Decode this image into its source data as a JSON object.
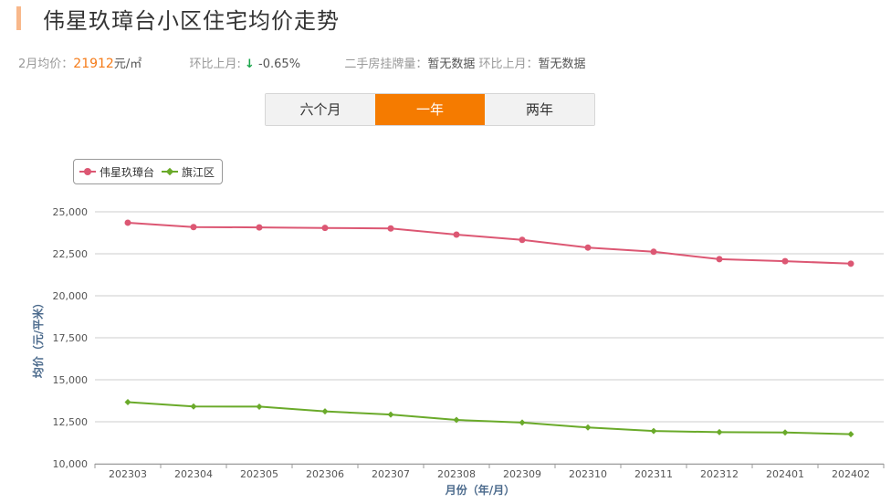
{
  "header": {
    "title": "伟星玖璋台小区住宅均价走势"
  },
  "stats": {
    "avg_label": "2月均价：",
    "avg_value": "21912",
    "avg_unit": "元/㎡",
    "mom_label": "环比上月: ",
    "mom_arrow": "↓",
    "mom_value": " -0.65%",
    "listing_label": "二手房挂牌量：",
    "listing_value": "暂无数据",
    "listing_mom_label": "环比上月：",
    "listing_mom_value": "暂无数据"
  },
  "tabs": [
    {
      "label": "六个月",
      "active": false
    },
    {
      "label": "一年",
      "active": true
    },
    {
      "label": "两年",
      "active": false
    }
  ],
  "colors": {
    "series1": "#dc5773",
    "series2": "#6aaa2a",
    "accent": "#f57b00"
  },
  "chart_data": {
    "type": "line",
    "categories": [
      "202303",
      "202304",
      "202305",
      "202306",
      "202307",
      "202308",
      "202309",
      "202310",
      "202311",
      "202312",
      "202401",
      "202402"
    ],
    "series": [
      {
        "name": "伟星玖璋台",
        "marker": "circle",
        "values": [
          24350,
          24090,
          24070,
          24040,
          24010,
          23640,
          23330,
          22870,
          22620,
          22180,
          22060,
          21912
        ]
      },
      {
        "name": "旗江区",
        "marker": "diamond",
        "values": [
          13670,
          13410,
          13400,
          13120,
          12930,
          12610,
          12450,
          12160,
          11950,
          11880,
          11860,
          11760
        ]
      }
    ],
    "ylabel": "均价（元/平米）",
    "xlabel": "月份（年/月）",
    "ylim": [
      10000,
      25000
    ],
    "yticks": [
      "10,000",
      "12,500",
      "15,000",
      "17,500",
      "20,000",
      "22,500",
      "25,000"
    ],
    "ytick_values": [
      10000,
      12500,
      15000,
      17500,
      20000,
      22500,
      25000
    ],
    "grid": true,
    "legend_position": "top-left"
  }
}
